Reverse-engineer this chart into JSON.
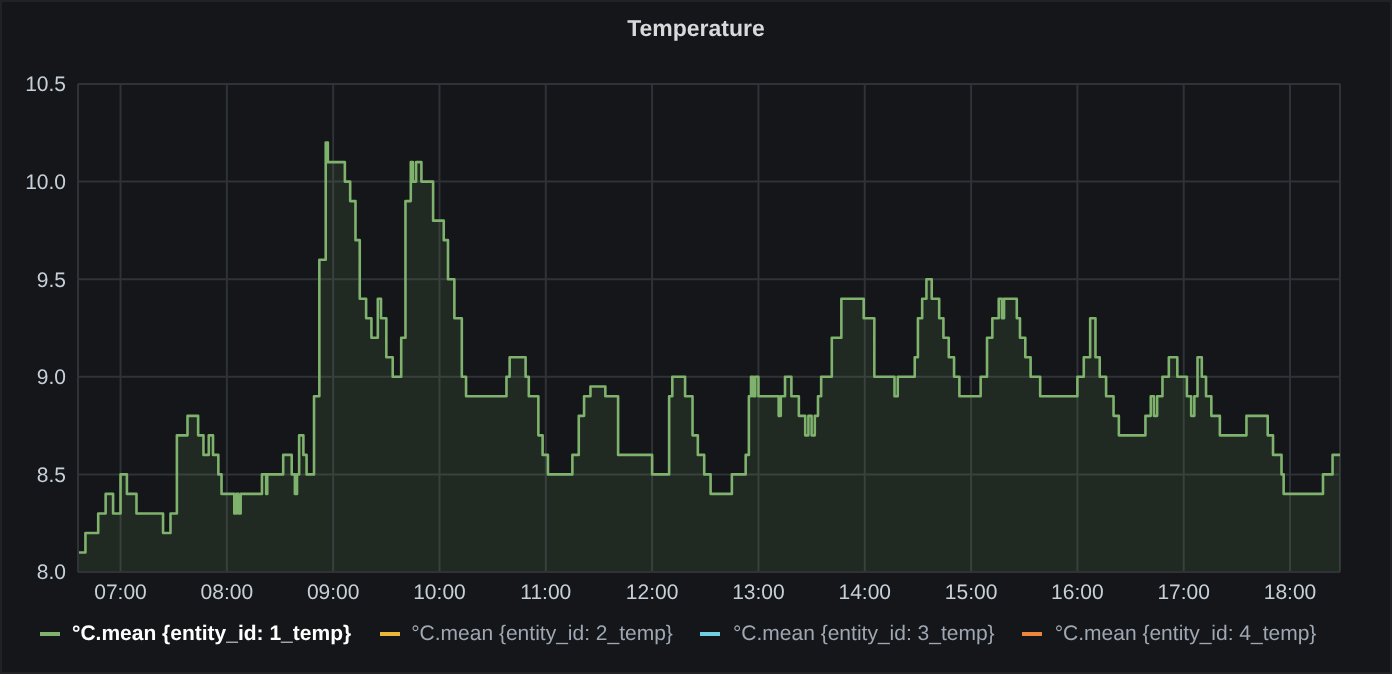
{
  "chart_data": {
    "type": "area",
    "title": "Temperature",
    "x": [
      6.6,
      6.67,
      6.67,
      6.79,
      6.79,
      6.86,
      6.86,
      6.93,
      6.93,
      7.0,
      7.0,
      7.06,
      7.06,
      7.15,
      7.15,
      7.4,
      7.4,
      7.47,
      7.47,
      7.53,
      7.53,
      7.63,
      7.63,
      7.73,
      7.73,
      7.78,
      7.78,
      7.83,
      7.83,
      7.87,
      7.87,
      7.92,
      7.92,
      7.95,
      7.95,
      8.07,
      8.07,
      8.09,
      8.09,
      8.11,
      8.11,
      8.13,
      8.13,
      8.33,
      8.33,
      8.37,
      8.37,
      8.38,
      8.38,
      8.53,
      8.53,
      8.61,
      8.61,
      8.64,
      8.64,
      8.66,
      8.66,
      8.68,
      8.68,
      8.72,
      8.72,
      8.75,
      8.75,
      8.82,
      8.82,
      8.87,
      8.87,
      8.93,
      8.93,
      8.95,
      8.95,
      9.11,
      9.11,
      9.16,
      9.16,
      9.21,
      9.21,
      9.25,
      9.25,
      9.31,
      9.31,
      9.36,
      9.36,
      9.42,
      9.42,
      9.45,
      9.45,
      9.5,
      9.5,
      9.56,
      9.56,
      9.64,
      9.64,
      9.68,
      9.68,
      9.73,
      9.73,
      9.75,
      9.75,
      9.78,
      9.78,
      9.83,
      9.83,
      9.94,
      9.94,
      10.04,
      10.04,
      10.08,
      10.08,
      10.14,
      10.14,
      10.21,
      10.21,
      10.25,
      10.25,
      10.63,
      10.63,
      10.66,
      10.66,
      10.81,
      10.81,
      10.84,
      10.84,
      10.93,
      10.93,
      10.97,
      10.97,
      11.02,
      11.02,
      11.25,
      11.25,
      11.31,
      11.31,
      11.36,
      11.36,
      11.42,
      11.42,
      11.56,
      11.56,
      11.68,
      11.68,
      12.0,
      12.0,
      12.16,
      12.16,
      12.19,
      12.19,
      12.31,
      12.31,
      12.38,
      12.38,
      12.43,
      12.43,
      12.49,
      12.49,
      12.55,
      12.55,
      12.75,
      12.75,
      12.88,
      12.88,
      12.91,
      12.91,
      12.93,
      12.93,
      12.95,
      12.95,
      12.97,
      12.97,
      13.0,
      13.0,
      13.19,
      13.19,
      13.21,
      13.21,
      13.25,
      13.25,
      13.31,
      13.31,
      13.38,
      13.38,
      13.44,
      13.44,
      13.47,
      13.47,
      13.5,
      13.5,
      13.53,
      13.53,
      13.56,
      13.56,
      13.59,
      13.59,
      13.69,
      13.69,
      13.78,
      13.78,
      13.99,
      13.99,
      14.09,
      14.09,
      14.28,
      14.28,
      14.31,
      14.31,
      14.47,
      14.47,
      14.5,
      14.5,
      14.54,
      14.54,
      14.58,
      14.58,
      14.63,
      14.63,
      14.7,
      14.7,
      14.74,
      14.74,
      14.79,
      14.79,
      14.84,
      14.84,
      14.89,
      14.89,
      15.09,
      15.09,
      15.15,
      15.15,
      15.2,
      15.2,
      15.26,
      15.26,
      15.29,
      15.29,
      15.31,
      15.31,
      15.43,
      15.43,
      15.46,
      15.46,
      15.51,
      15.51,
      15.56,
      15.56,
      15.65,
      15.65,
      16.0,
      16.0,
      16.06,
      16.06,
      16.12,
      16.12,
      16.17,
      16.17,
      16.21,
      16.21,
      16.27,
      16.27,
      16.34,
      16.34,
      16.39,
      16.39,
      16.64,
      16.64,
      16.69,
      16.69,
      16.72,
      16.72,
      16.75,
      16.75,
      16.8,
      16.8,
      16.86,
      16.86,
      16.94,
      16.94,
      17.03,
      17.03,
      17.07,
      17.07,
      17.1,
      17.1,
      17.13,
      17.13,
      17.17,
      17.17,
      17.21,
      17.21,
      17.26,
      17.26,
      17.34,
      17.34,
      17.59,
      17.59,
      17.79,
      17.79,
      17.84,
      17.84,
      17.92,
      17.92,
      17.94,
      17.94,
      18.31,
      18.31,
      18.4,
      18.4,
      18.47
    ],
    "series": [
      {
        "name": "°C.mean {entity_id: 1_temp}",
        "color": "#7eb26d",
        "values": [
          8.1,
          8.1,
          8.2,
          8.2,
          8.3,
          8.3,
          8.4,
          8.4,
          8.3,
          8.3,
          8.5,
          8.5,
          8.4,
          8.4,
          8.3,
          8.3,
          8.2,
          8.2,
          8.3,
          8.3,
          8.7,
          8.7,
          8.8,
          8.8,
          8.7,
          8.7,
          8.6,
          8.6,
          8.7,
          8.7,
          8.6,
          8.6,
          8.5,
          8.5,
          8.4,
          8.4,
          8.3,
          8.3,
          8.4,
          8.4,
          8.3,
          8.3,
          8.4,
          8.4,
          8.5,
          8.5,
          8.4,
          8.4,
          8.5,
          8.5,
          8.6,
          8.6,
          8.5,
          8.5,
          8.4,
          8.4,
          8.5,
          8.5,
          8.7,
          8.7,
          8.6,
          8.6,
          8.5,
          8.5,
          8.9,
          8.9,
          9.6,
          9.6,
          10.2,
          10.2,
          10.1,
          10.1,
          10.0,
          10.0,
          9.9,
          9.9,
          9.7,
          9.7,
          9.4,
          9.4,
          9.3,
          9.3,
          9.2,
          9.2,
          9.4,
          9.4,
          9.3,
          9.3,
          9.1,
          9.1,
          9.0,
          9.0,
          9.2,
          9.2,
          9.9,
          9.9,
          10.1,
          10.1,
          10.0,
          10.0,
          10.1,
          10.1,
          10.0,
          10.0,
          9.8,
          9.8,
          9.7,
          9.7,
          9.5,
          9.5,
          9.3,
          9.3,
          9.0,
          9.0,
          8.9,
          8.9,
          9.0,
          9.0,
          9.1,
          9.1,
          9.0,
          9.0,
          8.9,
          8.9,
          8.7,
          8.7,
          8.6,
          8.6,
          8.5,
          8.5,
          8.6,
          8.6,
          8.8,
          8.8,
          8.9,
          8.9,
          8.95,
          8.95,
          8.9,
          8.9,
          8.6,
          8.6,
          8.5,
          8.5,
          8.9,
          8.9,
          9.0,
          9.0,
          8.9,
          8.9,
          8.7,
          8.7,
          8.6,
          8.6,
          8.5,
          8.5,
          8.4,
          8.4,
          8.5,
          8.5,
          8.6,
          8.6,
          8.9,
          8.9,
          9.0,
          9.0,
          8.9,
          8.9,
          9.0,
          9.0,
          8.9,
          8.9,
          8.8,
          8.8,
          8.9,
          8.9,
          9.0,
          9.0,
          8.9,
          8.9,
          8.8,
          8.8,
          8.7,
          8.7,
          8.8,
          8.8,
          8.7,
          8.7,
          8.8,
          8.8,
          8.9,
          8.9,
          9.0,
          9.0,
          9.2,
          9.2,
          9.4,
          9.4,
          9.3,
          9.3,
          9.0,
          9.0,
          8.9,
          8.9,
          9.0,
          9.0,
          9.1,
          9.1,
          9.3,
          9.3,
          9.4,
          9.4,
          9.5,
          9.5,
          9.4,
          9.4,
          9.3,
          9.3,
          9.2,
          9.2,
          9.1,
          9.1,
          9.0,
          9.0,
          8.9,
          8.9,
          9.0,
          9.0,
          9.2,
          9.2,
          9.3,
          9.3,
          9.4,
          9.4,
          9.3,
          9.3,
          9.4,
          9.4,
          9.3,
          9.3,
          9.2,
          9.2,
          9.1,
          9.1,
          9.0,
          9.0,
          8.9,
          8.9,
          9.0,
          9.0,
          9.1,
          9.1,
          9.3,
          9.3,
          9.1,
          9.1,
          9.0,
          9.0,
          8.9,
          8.9,
          8.8,
          8.8,
          8.7,
          8.7,
          8.8,
          8.8,
          8.9,
          8.9,
          8.8,
          8.8,
          8.9,
          8.9,
          9.0,
          9.0,
          9.1,
          9.1,
          9.0,
          9.0,
          8.9,
          8.9,
          8.8,
          8.8,
          8.9,
          8.9,
          9.1,
          9.1,
          9.0,
          9.0,
          8.9,
          8.9,
          8.8,
          8.8,
          8.7,
          8.7,
          8.8,
          8.8,
          8.7,
          8.7,
          8.6,
          8.6,
          8.5,
          8.5,
          8.4,
          8.4,
          8.5,
          8.5,
          8.6,
          8.6
        ]
      },
      {
        "name": "°C.mean {entity_id: 2_temp}",
        "color": "#eab839",
        "values": [
          null,
          null,
          null,
          null,
          null,
          null,
          null,
          null,
          null,
          null,
          null,
          null,
          null,
          null,
          null,
          null,
          null,
          null,
          null,
          null,
          null,
          null,
          null,
          null,
          null,
          null,
          null,
          null,
          null,
          null,
          null,
          null,
          null,
          null,
          null,
          null,
          null,
          null,
          null,
          null,
          null,
          null,
          null,
          null,
          null,
          null,
          null,
          null,
          null,
          null,
          null,
          null,
          null,
          null,
          null,
          null,
          null,
          null,
          null,
          null,
          null,
          null,
          null,
          null,
          null,
          null,
          null,
          null,
          null,
          null,
          null,
          null,
          null,
          null,
          null,
          null,
          null,
          null,
          null,
          null,
          null,
          null,
          null,
          null,
          null,
          null,
          null,
          null,
          null,
          null,
          null,
          null,
          null,
          null,
          null,
          null,
          null,
          null,
          null,
          null,
          null,
          null,
          null,
          null,
          null,
          null,
          null,
          null,
          null,
          null,
          null,
          null,
          null,
          null,
          null,
          null,
          null,
          null,
          null,
          null,
          null,
          null,
          null,
          null,
          null,
          null,
          null,
          null,
          null,
          null,
          null,
          null,
          null,
          null,
          null,
          null,
          null,
          null,
          null,
          null,
          null,
          null,
          null,
          null,
          null,
          null,
          null,
          null,
          null,
          null,
          null,
          null,
          null,
          null,
          null,
          null,
          null,
          null,
          null,
          null,
          null,
          null,
          null,
          null,
          null,
          null,
          null,
          null,
          null,
          null,
          null,
          null,
          null,
          null,
          null,
          null,
          null,
          null,
          null,
          null,
          null,
          null,
          null,
          null,
          null,
          null,
          null,
          null,
          null,
          null,
          null,
          null,
          null,
          null,
          null,
          null,
          null,
          null,
          null,
          null,
          null,
          null,
          null,
          null,
          null,
          null,
          null,
          null,
          null,
          null,
          null,
          null,
          null,
          null,
          null,
          null,
          null,
          null,
          null,
          null,
          null,
          null,
          null,
          null,
          null,
          null,
          null,
          null,
          null,
          null,
          null,
          null,
          null,
          null,
          null,
          null,
          null,
          null,
          null,
          null,
          null,
          null,
          null,
          null,
          null,
          null,
          null,
          null,
          null,
          null,
          null,
          null,
          null,
          null,
          null,
          null,
          null,
          null,
          null,
          null,
          null,
          null,
          null,
          null,
          null,
          null,
          null,
          null,
          null,
          null,
          null,
          null,
          null,
          null,
          null,
          null,
          null,
          null,
          null,
          null,
          null,
          null,
          null,
          null,
          null,
          null,
          null,
          null,
          null,
          null,
          null,
          null,
          null,
          null,
          null,
          null,
          null,
          null,
          null,
          null,
          null,
          null,
          null,
          null,
          null,
          null,
          null,
          null
        ]
      },
      {
        "name": "°C.mean {entity_id: 3_temp}",
        "color": "#6ed0e0",
        "values": [
          null,
          null,
          null,
          null,
          null,
          null,
          null,
          null,
          null,
          null,
          null,
          null,
          null,
          null,
          null,
          null,
          null,
          null,
          null,
          null,
          null,
          null,
          null,
          null,
          null,
          null,
          null,
          null,
          null,
          null,
          null,
          null,
          null,
          null,
          null,
          null,
          null,
          null,
          null,
          null,
          null,
          null,
          null,
          null,
          null,
          null,
          null,
          null,
          null,
          null,
          null,
          null,
          null,
          null,
          null,
          null,
          null,
          null,
          null,
          null,
          null,
          null,
          null,
          null,
          null,
          null,
          null,
          null,
          null,
          null,
          null,
          null,
          null,
          null,
          null,
          null,
          null,
          null,
          null,
          null,
          null,
          null,
          null,
          null,
          null,
          null,
          null,
          null,
          null,
          null,
          null,
          null,
          null,
          null,
          null,
          null,
          null,
          null,
          null,
          null,
          null,
          null,
          null,
          null,
          null,
          null,
          null,
          null,
          null,
          null,
          null,
          null,
          null,
          null,
          null,
          null,
          null,
          null,
          null,
          null,
          null,
          null,
          null,
          null,
          null,
          null,
          null,
          null,
          null,
          null,
          null,
          null,
          null,
          null,
          null,
          null,
          null,
          null,
          null,
          null,
          null,
          null,
          null,
          null,
          null,
          null,
          null,
          null,
          null,
          null,
          null,
          null,
          null,
          null,
          null,
          null,
          null,
          null,
          null,
          null,
          null,
          null,
          null,
          null,
          null,
          null,
          null,
          null,
          null,
          null,
          null,
          null,
          null,
          null,
          null,
          null,
          null,
          null,
          null,
          null,
          null,
          null,
          null,
          null,
          null,
          null,
          null,
          null,
          null,
          null,
          null,
          null,
          null,
          null,
          null,
          null,
          null,
          null,
          null,
          null,
          null,
          null,
          null,
          null,
          null,
          null,
          null,
          null,
          null,
          null,
          null,
          null,
          null,
          null,
          null,
          null,
          null,
          null,
          null,
          null,
          null,
          null,
          null,
          null,
          null,
          null,
          null,
          null,
          null,
          null,
          null,
          null,
          null,
          null,
          null,
          null,
          null,
          null,
          null,
          null,
          null,
          null,
          null,
          null,
          null,
          null,
          null,
          null,
          null,
          null,
          null,
          null,
          null,
          null,
          null,
          null,
          null,
          null,
          null,
          null,
          null,
          null,
          null,
          null,
          null,
          null,
          null,
          null,
          null,
          null,
          null,
          null,
          null,
          null,
          null,
          null,
          null,
          null,
          null,
          null,
          null,
          null,
          null,
          null,
          null,
          null,
          null,
          null,
          null,
          null,
          null,
          null,
          null,
          null,
          null,
          null,
          null,
          null,
          null,
          null,
          null,
          null,
          null,
          null,
          null,
          null,
          null,
          null
        ]
      },
      {
        "name": "°C.mean {entity_id: 4_temp}",
        "color": "#ef843c",
        "values": [
          null,
          null,
          null,
          null,
          null,
          null,
          null,
          null,
          null,
          null,
          null,
          null,
          null,
          null,
          null,
          null,
          null,
          null,
          null,
          null,
          null,
          null,
          null,
          null,
          null,
          null,
          null,
          null,
          null,
          null,
          null,
          null,
          null,
          null,
          null,
          null,
          null,
          null,
          null,
          null,
          null,
          null,
          null,
          null,
          null,
          null,
          null,
          null,
          null,
          null,
          null,
          null,
          null,
          null,
          null,
          null,
          null,
          null,
          null,
          null,
          null,
          null,
          null,
          null,
          null,
          null,
          null,
          null,
          null,
          null,
          null,
          null,
          null,
          null,
          null,
          null,
          null,
          null,
          null,
          null,
          null,
          null,
          null,
          null,
          null,
          null,
          null,
          null,
          null,
          null,
          null,
          null,
          null,
          null,
          null,
          null,
          null,
          null,
          null,
          null,
          null,
          null,
          null,
          null,
          null,
          null,
          null,
          null,
          null,
          null,
          null,
          null,
          null,
          null,
          null,
          null,
          null,
          null,
          null,
          null,
          null,
          null,
          null,
          null,
          null,
          null,
          null,
          null,
          null,
          null,
          null,
          null,
          null,
          null,
          null,
          null,
          null,
          null,
          null,
          null,
          null,
          null,
          null,
          null,
          null,
          null,
          null,
          null,
          null,
          null,
          null,
          null,
          null,
          null,
          null,
          null,
          null,
          null,
          null,
          null,
          null,
          null,
          null,
          null,
          null,
          null,
          null,
          null,
          null,
          null,
          null,
          null,
          null,
          null,
          null,
          null,
          null,
          null,
          null,
          null,
          null,
          null,
          null,
          null,
          null,
          null,
          null,
          null,
          null,
          null,
          null,
          null,
          null,
          null,
          null,
          null,
          null,
          null,
          null,
          null,
          null,
          null,
          null,
          null,
          null,
          null,
          null,
          null,
          null,
          null,
          null,
          null,
          null,
          null,
          null,
          null,
          null,
          null,
          null,
          null,
          null,
          null,
          null,
          null,
          null,
          null,
          null,
          null,
          null,
          null,
          null,
          null,
          null,
          null,
          null,
          null,
          null,
          null,
          null,
          null,
          null,
          null,
          null,
          null,
          null,
          null,
          null,
          null,
          null,
          null,
          null,
          null,
          null,
          null,
          null,
          null,
          null,
          null,
          null,
          null,
          null,
          null,
          null,
          null,
          null,
          null,
          null,
          null,
          null,
          null,
          null,
          null,
          null,
          null,
          null,
          null,
          null,
          null,
          null,
          null,
          null,
          null,
          null,
          null,
          null,
          null,
          null,
          null,
          null,
          null,
          null,
          null,
          null,
          null,
          null,
          null,
          null,
          null,
          null,
          null,
          null,
          null,
          null,
          null,
          null,
          null,
          null,
          null
        ]
      }
    ],
    "xlim": [
      6.6,
      18.47
    ],
    "xticks": [
      {
        "value": 7,
        "label": "07:00"
      },
      {
        "value": 8,
        "label": "08:00"
      },
      {
        "value": 9,
        "label": "09:00"
      },
      {
        "value": 10,
        "label": "10:00"
      },
      {
        "value": 11,
        "label": "11:00"
      },
      {
        "value": 12,
        "label": "12:00"
      },
      {
        "value": 13,
        "label": "13:00"
      },
      {
        "value": 14,
        "label": "14:00"
      },
      {
        "value": 15,
        "label": "15:00"
      },
      {
        "value": 16,
        "label": "16:00"
      },
      {
        "value": 17,
        "label": "17:00"
      },
      {
        "value": 18,
        "label": "18:00"
      }
    ],
    "ylim": [
      8,
      10.5
    ],
    "yticks": [
      {
        "value": 8,
        "label": "8.0"
      },
      8.5,
      {
        "value": 9,
        "label": "9.0"
      },
      9.5,
      {
        "value": 10,
        "label": "10.0"
      },
      10.5
    ],
    "grid": true,
    "legend": "bottom"
  }
}
